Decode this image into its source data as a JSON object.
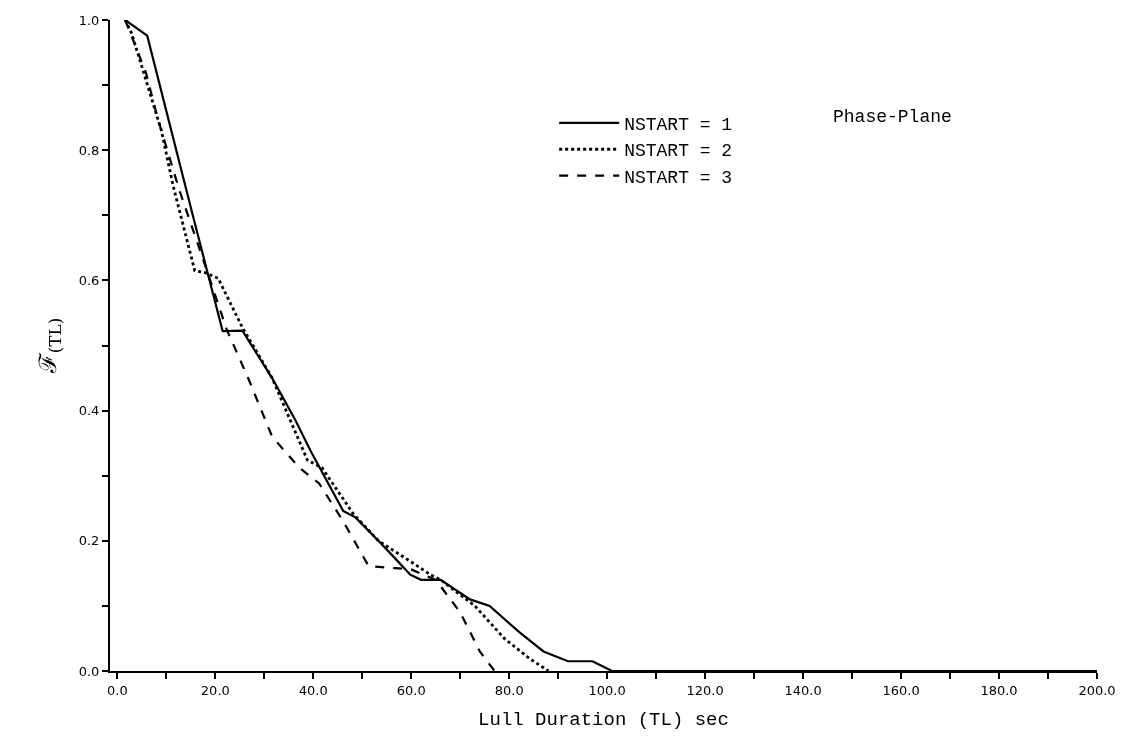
{
  "chart_data": {
    "type": "line",
    "xlabel": "Lull Duration (TL) sec",
    "ylabel": "ℱ$_{(TL)}$",
    "annotations": [
      "Phase-Plane"
    ],
    "xlim": [
      -1.5,
      200
    ],
    "ylim": [
      0,
      1
    ],
    "xticks": [
      {
        "value": 0,
        "label": "0.0"
      },
      {
        "value": 10,
        "label": null
      },
      {
        "value": 20,
        "label": "20.0"
      },
      {
        "value": 30,
        "label": null
      },
      {
        "value": 40,
        "label": "40.0"
      },
      {
        "value": 50,
        "label": null
      },
      {
        "value": 60,
        "label": "60.0"
      },
      {
        "value": 70,
        "label": null
      },
      {
        "value": 80,
        "label": "80.0"
      },
      {
        "value": 90,
        "label": null
      },
      {
        "value": 100,
        "label": "100.0"
      },
      {
        "value": 110,
        "label": null
      },
      {
        "value": 120,
        "label": "120.0"
      },
      {
        "value": 130,
        "label": null
      },
      {
        "value": 140,
        "label": "140.0"
      },
      {
        "value": 150,
        "label": null
      },
      {
        "value": 160,
        "label": "160.0"
      },
      {
        "value": 170,
        "label": null
      },
      {
        "value": 180,
        "label": "180.0"
      },
      {
        "value": 190,
        "label": null
      },
      {
        "value": 200,
        "label": "200.0"
      }
    ],
    "yticks": [
      {
        "value": 0,
        "label": "0.0"
      },
      {
        "value": 0.1,
        "label": null
      },
      {
        "value": 0.2,
        "label": "0.2"
      },
      {
        "value": 0.3,
        "label": null
      },
      {
        "value": 0.4,
        "label": "0.4"
      },
      {
        "value": 0.5,
        "label": null
      },
      {
        "value": 0.6,
        "label": "0.6"
      },
      {
        "value": 0.7,
        "label": null
      },
      {
        "value": 0.8,
        "label": "0.8"
      },
      {
        "value": 0.9,
        "label": null
      },
      {
        "value": 1.0,
        "label": "1.0"
      }
    ],
    "legend": "top right",
    "marker": "none",
    "series": [
      {
        "name": "NSTART = 1",
        "color": "#000000",
        "line_style": "solid",
        "x": [
          1.6,
          6.1,
          15.4,
          21.5,
          25.5,
          31.6,
          36.3,
          39.6,
          46.1,
          48.6,
          53.3,
          56.7,
          59.8,
          62,
          66,
          72,
          76,
          82,
          87,
          92,
          97,
          101,
          200
        ],
        "values": [
          1.0,
          0.976,
          0.7,
          0.522,
          0.523,
          0.45,
          0.386,
          0.336,
          0.246,
          0.236,
          0.2,
          0.173,
          0.148,
          0.14,
          0.14,
          0.11,
          0.1,
          0.06,
          0.03,
          0.015,
          0.015,
          0.0,
          0.0
        ]
      },
      {
        "name": "NSTART = 2",
        "color": "#000000",
        "line_style": "dotted",
        "x": [
          1.6,
          2.9,
          9.0,
          11.4,
          15.8,
          17.9,
          20.6,
          25.5,
          31.6,
          38.8,
          41.8,
          48.2,
          53.3,
          60.1,
          63.9,
          66,
          73,
          79,
          84,
          88
        ],
        "values": [
          1.0,
          0.98,
          0.83,
          0.745,
          0.615,
          0.612,
          0.603,
          0.528,
          0.45,
          0.324,
          0.312,
          0.241,
          0.2,
          0.167,
          0.148,
          0.14,
          0.1,
          0.05,
          0.02,
          0.0
        ]
      },
      {
        "name": "NSTART = 3",
        "color": "#000000",
        "line_style": "dashed",
        "x": [
          1.6,
          5.8,
          8.2,
          12.6,
          18.7,
          22.3,
          26.7,
          31.6,
          37.2,
          41.2,
          46.1,
          51.3,
          56.7,
          60,
          65,
          70,
          74,
          77
        ],
        "values": [
          1.0,
          0.92,
          0.85,
          0.74,
          0.606,
          0.525,
          0.45,
          0.36,
          0.312,
          0.288,
          0.23,
          0.161,
          0.158,
          0.156,
          0.14,
          0.09,
          0.03,
          0.0
        ]
      }
    ]
  }
}
